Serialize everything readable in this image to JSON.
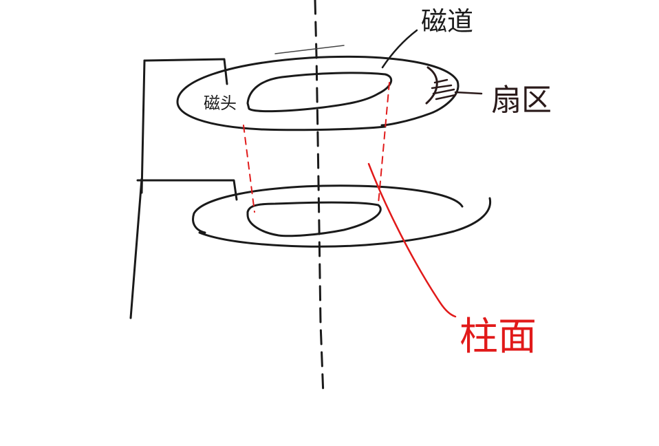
{
  "labels": {
    "track": "磁道",
    "head": "磁头",
    "sector": "扇区",
    "cylinder": "柱面"
  },
  "colors": {
    "ink": "#1a1a1a",
    "sector_ink": "#2a1a1a",
    "cylinder_ink": "#e11a1a",
    "background": "#ffffff"
  }
}
